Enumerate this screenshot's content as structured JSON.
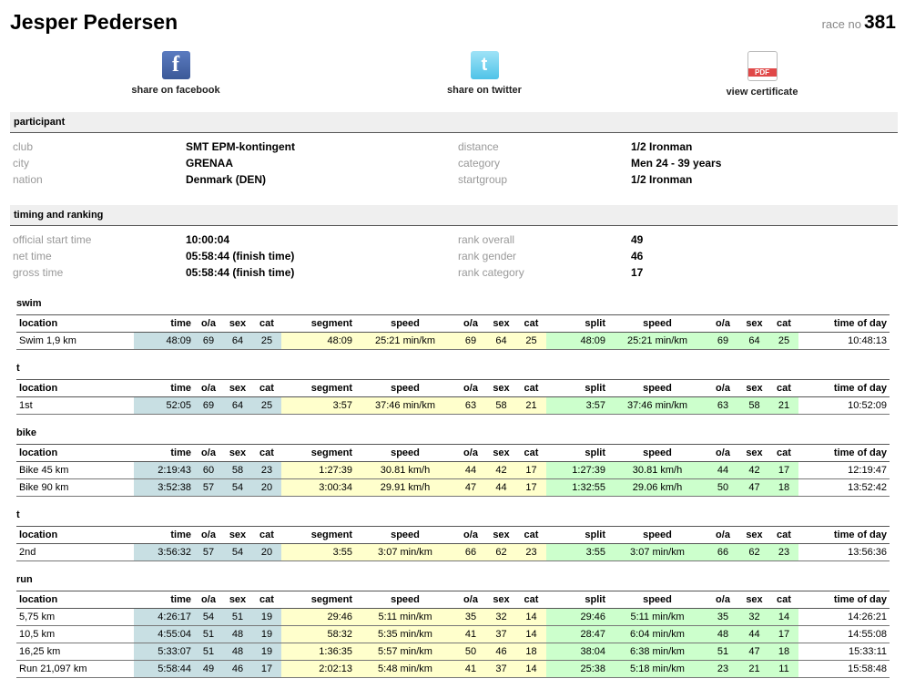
{
  "header": {
    "name": "Jesper Pedersen",
    "race_no_label": "race no",
    "race_no": "381"
  },
  "share": [
    {
      "icon": "f",
      "label": "share on facebook"
    },
    {
      "icon": "t",
      "label": "share on twitter"
    },
    {
      "icon": "PDF",
      "label": "view certificate"
    }
  ],
  "info_sections": [
    {
      "title": "participant",
      "rows": [
        [
          "club",
          "SMT EPM-kontingent",
          "distance",
          "1/2 Ironman"
        ],
        [
          "city",
          "GRENAA",
          "category",
          "Men 24 - 39 years"
        ],
        [
          "nation",
          "Denmark (DEN)",
          "startgroup",
          "1/2 Ironman"
        ]
      ]
    },
    {
      "title": "timing and ranking",
      "rows": [
        [
          "official start time",
          "10:00:04",
          "rank overall",
          "49"
        ],
        [
          "net time",
          "05:58:44 (finish time)",
          "rank gender",
          "46"
        ],
        [
          "gross time",
          "05:58:44 (finish time)",
          "rank category",
          "17"
        ]
      ]
    }
  ],
  "split_columns": [
    "location",
    "time",
    "o/a",
    "sex",
    "cat",
    "segment",
    "speed",
    "o/a",
    "sex",
    "cat",
    "split",
    "speed",
    "o/a",
    "sex",
    "cat",
    "time of day"
  ],
  "splits": [
    {
      "title": "swim",
      "rows": [
        [
          "Swim 1,9 km",
          "48:09",
          "69",
          "64",
          "25",
          "48:09",
          "25:21 min/km",
          "69",
          "64",
          "25",
          "48:09",
          "25:21 min/km",
          "69",
          "64",
          "25",
          "10:48:13"
        ]
      ]
    },
    {
      "title": "t",
      "rows": [
        [
          "1st",
          "52:05",
          "69",
          "64",
          "25",
          "3:57",
          "37:46 min/km",
          "63",
          "58",
          "21",
          "3:57",
          "37:46 min/km",
          "63",
          "58",
          "21",
          "10:52:09"
        ]
      ]
    },
    {
      "title": "bike",
      "rows": [
        [
          "Bike 45 km",
          "2:19:43",
          "60",
          "58",
          "23",
          "1:27:39",
          "30.81 km/h",
          "44",
          "42",
          "17",
          "1:27:39",
          "30.81 km/h",
          "44",
          "42",
          "17",
          "12:19:47"
        ],
        [
          "Bike 90 km",
          "3:52:38",
          "57",
          "54",
          "20",
          "3:00:34",
          "29.91 km/h",
          "47",
          "44",
          "17",
          "1:32:55",
          "29.06 km/h",
          "50",
          "47",
          "18",
          "13:52:42"
        ]
      ]
    },
    {
      "title": "t",
      "rows": [
        [
          "2nd",
          "3:56:32",
          "57",
          "54",
          "20",
          "3:55",
          "3:07 min/km",
          "66",
          "62",
          "23",
          "3:55",
          "3:07 min/km",
          "66",
          "62",
          "23",
          "13:56:36"
        ]
      ]
    },
    {
      "title": "run",
      "rows": [
        [
          "5,75 km",
          "4:26:17",
          "54",
          "51",
          "19",
          "29:46",
          "5:11 min/km",
          "35",
          "32",
          "14",
          "29:46",
          "5:11 min/km",
          "35",
          "32",
          "14",
          "14:26:21"
        ],
        [
          "10,5 km",
          "4:55:04",
          "51",
          "48",
          "19",
          "58:32",
          "5:35 min/km",
          "41",
          "37",
          "14",
          "28:47",
          "6:04 min/km",
          "48",
          "44",
          "17",
          "14:55:08"
        ],
        [
          "16,25 km",
          "5:33:07",
          "51",
          "48",
          "19",
          "1:36:35",
          "5:57 min/km",
          "50",
          "46",
          "18",
          "38:04",
          "6:38 min/km",
          "51",
          "47",
          "18",
          "15:33:11"
        ],
        [
          "Run 21,097 km",
          "5:58:44",
          "49",
          "46",
          "17",
          "2:02:13",
          "5:48 min/km",
          "41",
          "37",
          "14",
          "25:38",
          "5:18 min/km",
          "23",
          "21",
          "11",
          "15:58:48"
        ]
      ]
    }
  ]
}
